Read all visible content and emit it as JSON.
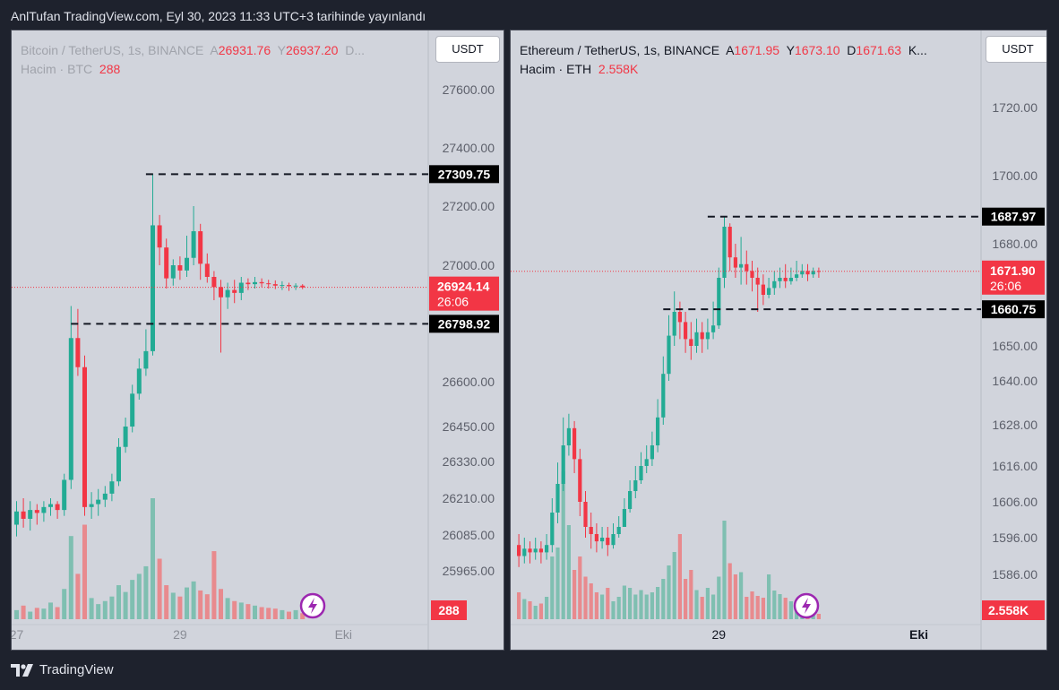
{
  "header": {
    "title": "AnlTufan TradingView.com, Eyl 30, 2023 11:33 UTC+3 tarihinde yayınlandı"
  },
  "footer": {
    "brand": "TradingView"
  },
  "colors": {
    "up": "#22ab94",
    "down": "#f23645",
    "up_vol": "#7fbfb1",
    "down_vol": "#e88a8e",
    "panel_bg": "#d1d4dc",
    "page_bg": "#1e222d"
  },
  "chart_data": [
    {
      "type": "candlestick",
      "symbol": "Bitcoin / TetherUS, 1s, BINANCE",
      "ohlc_labels": {
        "o": "A",
        "o_val": "26931.76",
        "h": "Y",
        "h_val": "26937.20",
        "tail": "D..."
      },
      "volume_label": {
        "name": "Hacim · BTC",
        "value": "288"
      },
      "currency_button": "USDT",
      "price_axis": {
        "ticks": [
          {
            "label": "27600.00",
            "value": 27600
          },
          {
            "label": "27400.00",
            "value": 27400
          },
          {
            "label": "27200.00",
            "value": 27200
          },
          {
            "label": "27000.00",
            "value": 27000
          },
          {
            "label": "26600.00",
            "value": 26600
          },
          {
            "label": "26450.00",
            "value": 26450
          },
          {
            "label": "26330.00",
            "value": 26330
          },
          {
            "label": "26210.00",
            "value": 26210
          },
          {
            "label": "26085.00",
            "value": 26085
          },
          {
            "label": "25965.00",
            "value": 25965
          }
        ]
      },
      "time_axis": [
        {
          "label": "27",
          "index": 0
        },
        {
          "label": "29",
          "index": 24
        },
        {
          "label": "Eki",
          "index": 48
        }
      ],
      "levels": [
        {
          "value": 27309.75,
          "label": "27309.75",
          "from_index": 19
        },
        {
          "value": 26798.92,
          "label": "26798.92",
          "from_index": 8
        }
      ],
      "last_price": {
        "value": 26924.14,
        "label": "26924.14",
        "countdown": "26:06"
      },
      "volume_badge": "288",
      "series": {
        "open": [
          26120,
          26165,
          26140,
          26170,
          26160,
          26180,
          26190,
          26170,
          26270,
          26750,
          26650,
          26180,
          26190,
          26205,
          26225,
          26265,
          26380,
          26450,
          26560,
          26645,
          26705,
          27135,
          27060,
          26955,
          27000,
          26982,
          27025,
          27115,
          27005,
          26960,
          26925,
          26890,
          26915,
          26905,
          26940,
          26935,
          26942,
          26938,
          26935,
          26930,
          26932,
          26928,
          26930
        ],
        "close": [
          26165,
          26140,
          26170,
          26160,
          26180,
          26190,
          26170,
          26270,
          26750,
          26650,
          26180,
          26190,
          26205,
          26225,
          26265,
          26380,
          26450,
          26560,
          26645,
          26705,
          27135,
          27060,
          26955,
          27000,
          26982,
          27025,
          27115,
          27005,
          26960,
          26925,
          26890,
          26915,
          26905,
          26940,
          26935,
          26942,
          26938,
          26935,
          26930,
          26932,
          26928,
          26930,
          26924
        ],
        "high": [
          26200,
          26210,
          26200,
          26190,
          26200,
          26210,
          26200,
          26290,
          26860,
          26850,
          26690,
          26230,
          26240,
          26250,
          26290,
          26410,
          26480,
          26590,
          26680,
          26780,
          27310,
          27170,
          27090,
          27020,
          27030,
          27100,
          27200,
          27140,
          27040,
          26980,
          26950,
          26940,
          26950,
          26960,
          26955,
          26960,
          26955,
          26950,
          26948,
          26945,
          26940,
          26938,
          26935
        ],
        "low": [
          26080,
          26110,
          26100,
          26120,
          26130,
          26150,
          26140,
          26150,
          26240,
          26620,
          26150,
          26140,
          26150,
          26180,
          26200,
          26250,
          26360,
          26430,
          26540,
          26620,
          26690,
          27000,
          26920,
          26930,
          26950,
          26960,
          27000,
          26950,
          26940,
          26880,
          26700,
          26850,
          26870,
          26880,
          26915,
          26920,
          26925,
          26920,
          26918,
          26915,
          26912,
          26915,
          26918
        ],
        "volume": [
          12,
          18,
          10,
          15,
          14,
          22,
          16,
          40,
          110,
          60,
          125,
          28,
          20,
          24,
          30,
          45,
          36,
          52,
          60,
          70,
          160,
          80,
          45,
          35,
          30,
          42,
          50,
          38,
          33,
          90,
          40,
          28,
          24,
          22,
          20,
          18,
          16,
          15,
          14,
          12,
          10,
          12,
          8
        ]
      },
      "volume_max": 160
    },
    {
      "type": "candlestick",
      "symbol": "Ethereum / TetherUS, 1s, BINANCE",
      "ohlc_labels": {
        "o": "A",
        "o_val": "1671.95",
        "h": "Y",
        "h_val": "1673.10",
        "l": "D",
        "l_val": "1671.63",
        "tail": "K..."
      },
      "volume_label": {
        "name": "Hacim · ETH",
        "value": "2.558K"
      },
      "currency_button": "USDT",
      "price_axis": {
        "ticks": [
          {
            "label": "1720.00",
            "value": 1720
          },
          {
            "label": "1700.00",
            "value": 1700
          },
          {
            "label": "1680.00",
            "value": 1680
          },
          {
            "label": "1650.00",
            "value": 1650
          },
          {
            "label": "1640.00",
            "value": 1640
          },
          {
            "label": "1628.00",
            "value": 1628
          },
          {
            "label": "1616.00",
            "value": 1616
          },
          {
            "label": "1606.00",
            "value": 1606
          },
          {
            "label": "1596.00",
            "value": 1596
          },
          {
            "label": "1586.00",
            "value": 1586
          }
        ]
      },
      "time_axis": [
        {
          "label": "29",
          "index": 36
        },
        {
          "label": "Eki",
          "index": 72
        }
      ],
      "levels": [
        {
          "value": 1687.97,
          "label": "1687.97",
          "from_index": 34
        },
        {
          "value": 1660.75,
          "label": "1660.75",
          "from_index": 26
        }
      ],
      "last_price": {
        "value": 1671.9,
        "label": "1671.90",
        "countdown": "26:06"
      },
      "volume_badge": "2.558K",
      "series": {
        "open": [
          1594,
          1591,
          1593,
          1592,
          1593,
          1592,
          1594,
          1603,
          1611,
          1622,
          1627,
          1618,
          1606,
          1599,
          1597,
          1595,
          1596,
          1594,
          1597,
          1599,
          1604,
          1609,
          1612,
          1616,
          1618,
          1622,
          1630,
          1642,
          1653,
          1660,
          1657,
          1652,
          1650,
          1654,
          1652,
          1654,
          1656,
          1670,
          1685,
          1676,
          1673,
          1674,
          1672,
          1670,
          1668,
          1665,
          1667,
          1669,
          1670,
          1669,
          1670,
          1671,
          1672,
          1671,
          1672
        ],
        "close": [
          1591,
          1593,
          1592,
          1593,
          1592,
          1594,
          1603,
          1611,
          1622,
          1627,
          1618,
          1606,
          1599,
          1597,
          1595,
          1596,
          1594,
          1597,
          1599,
          1604,
          1609,
          1612,
          1616,
          1618,
          1622,
          1630,
          1642,
          1653,
          1660,
          1657,
          1652,
          1650,
          1654,
          1652,
          1654,
          1656,
          1670,
          1685,
          1676,
          1673,
          1674,
          1672,
          1670,
          1668,
          1665,
          1667,
          1669,
          1670,
          1669,
          1670,
          1671,
          1672,
          1671,
          1672,
          1671.9
        ],
        "high": [
          1597,
          1596,
          1595,
          1596,
          1595,
          1597,
          1607,
          1617,
          1630,
          1631,
          1629,
          1621,
          1609,
          1603,
          1600,
          1599,
          1599,
          1600,
          1602,
          1607,
          1612,
          1616,
          1620,
          1622,
          1626,
          1635,
          1647,
          1659,
          1666,
          1663,
          1660,
          1657,
          1658,
          1657,
          1658,
          1663,
          1673,
          1688,
          1686,
          1680,
          1682,
          1678,
          1675,
          1673,
          1671,
          1670,
          1672,
          1673,
          1674,
          1673,
          1675,
          1674,
          1674,
          1673,
          1673
        ],
        "low": [
          1588,
          1589,
          1589,
          1590,
          1589,
          1590,
          1592,
          1600,
          1609,
          1619,
          1614,
          1602,
          1596,
          1593,
          1592,
          1593,
          1591,
          1593,
          1596,
          1600,
          1603,
          1607,
          1611,
          1614,
          1616,
          1620,
          1628,
          1640,
          1650,
          1652,
          1648,
          1646,
          1648,
          1648,
          1649,
          1652,
          1655,
          1667,
          1672,
          1670,
          1668,
          1668,
          1666,
          1660,
          1662,
          1664,
          1665,
          1667,
          1667,
          1668,
          1669,
          1670,
          1669,
          1670,
          1670
        ],
        "volume": [
          60,
          45,
          40,
          30,
          35,
          50,
          140,
          160,
          330,
          210,
          110,
          140,
          95,
          80,
          60,
          55,
          70,
          40,
          50,
          75,
          70,
          55,
          65,
          55,
          60,
          72,
          90,
          120,
          150,
          190,
          90,
          110,
          65,
          50,
          70,
          55,
          95,
          220,
          125,
          100,
          105,
          50,
          62,
          52,
          48,
          100,
          64,
          56,
          48,
          40,
          36,
          32,
          28,
          24,
          12
        ]
      },
      "volume_max": 330
    }
  ]
}
